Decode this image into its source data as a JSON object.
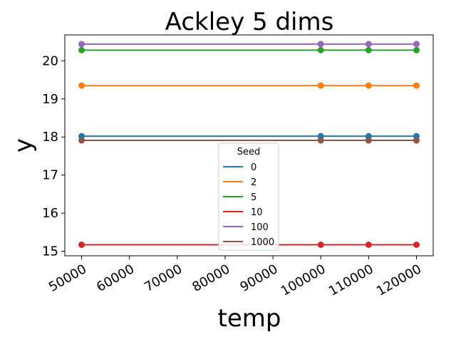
{
  "chart_data": {
    "type": "line",
    "title": "Ackley 5 dims",
    "xlabel": "temp",
    "ylabel": "y",
    "x": [
      50000,
      100000,
      110000,
      120000
    ],
    "xticks": [
      "50000",
      "60000",
      "70000",
      "80000",
      "90000",
      "100000",
      "110000",
      "120000"
    ],
    "yticks": [
      "15",
      "16",
      "17",
      "18",
      "19",
      "20"
    ],
    "xlim": [
      46500,
      123500
    ],
    "ylim": [
      14.88,
      20.68
    ],
    "grid": false,
    "legend": {
      "title": "Seed",
      "placement": "lower-center"
    },
    "series": [
      {
        "name": "0",
        "color": "#1f77b4",
        "values": [
          18.02,
          18.02,
          18.02,
          18.02
        ]
      },
      {
        "name": "2",
        "color": "#ff7f0e",
        "values": [
          19.35,
          19.35,
          19.35,
          19.35
        ]
      },
      {
        "name": "5",
        "color": "#2ca02c",
        "values": [
          20.28,
          20.28,
          20.28,
          20.28
        ]
      },
      {
        "name": "10",
        "color": "#d62728",
        "values": [
          15.17,
          15.17,
          15.17,
          15.17
        ]
      },
      {
        "name": "100",
        "color": "#9467bd",
        "values": [
          20.44,
          20.44,
          20.44,
          20.44
        ]
      },
      {
        "name": "1000",
        "color": "#8c564b",
        "values": [
          17.91,
          17.91,
          17.91,
          17.91
        ]
      }
    ]
  }
}
